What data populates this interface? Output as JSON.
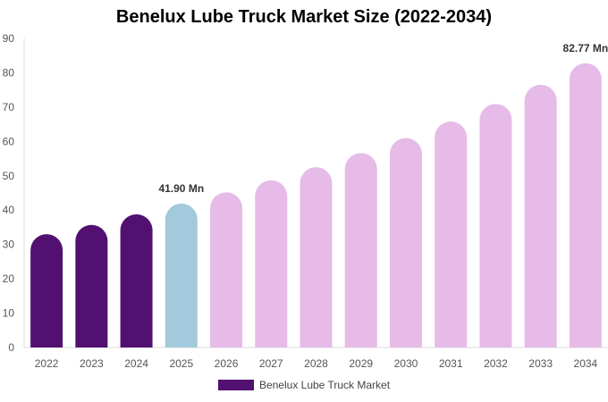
{
  "chart_data": {
    "type": "bar",
    "title": "Benelux Lube Truck Market Size (2022-2034)",
    "xlabel": "",
    "ylabel": "",
    "categories": [
      "2022",
      "2023",
      "2024",
      "2025",
      "2026",
      "2027",
      "2028",
      "2029",
      "2030",
      "2031",
      "2032",
      "2033",
      "2034"
    ],
    "series": [
      {
        "name": "Benelux Lube Truck Market",
        "values": [
          33.0,
          35.7,
          38.8,
          41.9,
          45.2,
          48.7,
          52.5,
          56.6,
          61.0,
          65.8,
          70.9,
          76.5,
          82.77
        ]
      }
    ],
    "bar_colors": [
      "#521171",
      "#521171",
      "#521171",
      "#a3c9dc",
      "#e6bbe8",
      "#e6bbe8",
      "#e6bbe8",
      "#e6bbe8",
      "#e6bbe8",
      "#e6bbe8",
      "#e6bbe8",
      "#e6bbe8",
      "#e6bbe8"
    ],
    "legend_color": "#521171",
    "data_labels": [
      {
        "category": "2025",
        "text": "41.90 Mn"
      },
      {
        "category": "2034",
        "text": "82.77 Mn"
      }
    ],
    "ylim": [
      0,
      90
    ],
    "yticks": [
      0,
      10,
      20,
      30,
      40,
      50,
      60,
      70,
      80,
      90
    ],
    "grid": false,
    "legend_position": "bottom"
  }
}
